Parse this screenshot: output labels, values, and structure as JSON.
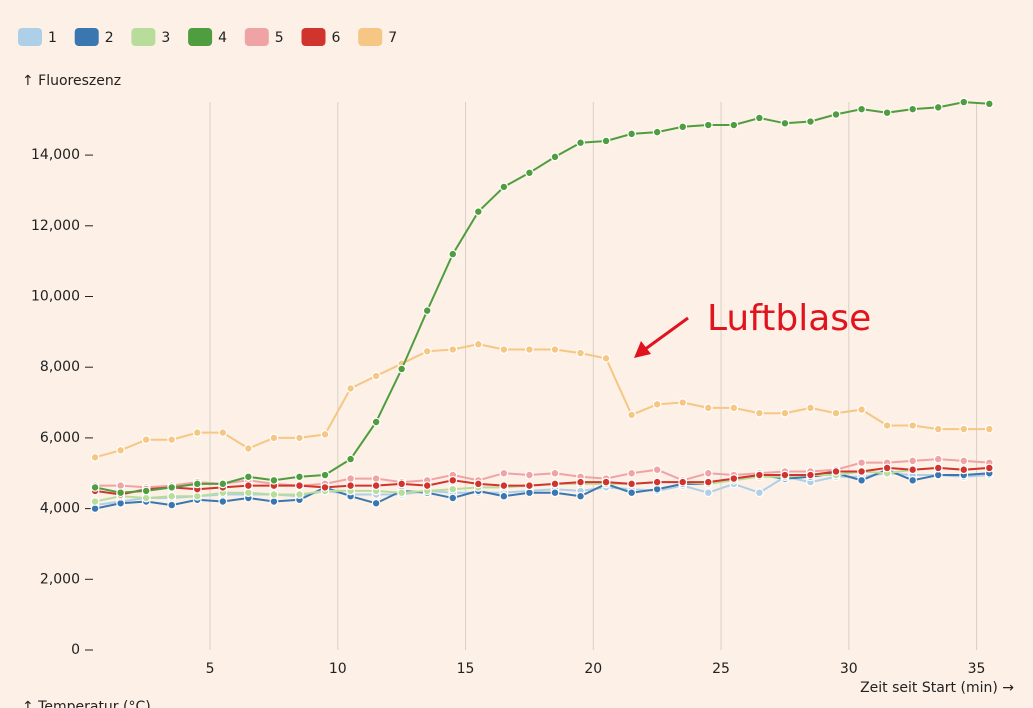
{
  "chart_data": {
    "type": "line",
    "y_label": "↑ Fluoreszenz",
    "x_label": "Zeit seit Start (min) →",
    "second_axis_label": "↑ Temperatur (°C)",
    "annotation": "Luftblase",
    "grid": "x",
    "legend_position": "top-left",
    "xlim": [
      0,
      36.5
    ],
    "xticks": [
      5,
      10,
      15,
      20,
      25,
      30,
      35
    ],
    "ylim": [
      0,
      15700
    ],
    "yticks": [
      0,
      {
        "value": 2000,
        "label": "2,000"
      },
      {
        "value": 4000,
        "label": "4,000"
      },
      {
        "value": 6000,
        "label": "6,000"
      },
      {
        "value": 8000,
        "label": "8,000"
      },
      {
        "value": 10000,
        "label": "10,000"
      },
      {
        "value": 12000,
        "label": "12,000"
      },
      {
        "value": 14000,
        "label": "14,000"
      }
    ],
    "x": [
      0.5,
      1.5,
      2.5,
      3.5,
      4.5,
      5.5,
      6.5,
      7.5,
      8.5,
      9.5,
      10.5,
      11.5,
      12.5,
      13.5,
      14.5,
      15.5,
      16.5,
      17.5,
      18.5,
      19.5,
      20.5,
      21.5,
      22.5,
      23.5,
      24.5,
      25.5,
      26.5,
      27.5,
      28.5,
      29.5,
      30.5,
      31.5,
      32.5,
      33.5,
      34.5,
      35.5
    ],
    "series": [
      {
        "name": "1",
        "color": "#aecfe8",
        "values": [
          4100,
          4200,
          4300,
          4300,
          4350,
          4400,
          4400,
          4400,
          4350,
          4500,
          4400,
          4400,
          4400,
          4500,
          4450,
          4450,
          4450,
          4500,
          4550,
          4500,
          4600,
          4550,
          4500,
          4650,
          4450,
          4700,
          4450,
          4900,
          4750,
          4900,
          4900,
          5000,
          4950,
          4950,
          4900,
          4950
        ]
      },
      {
        "name": "2",
        "color": "#3a76b0",
        "values": [
          4000,
          4150,
          4200,
          4100,
          4250,
          4200,
          4300,
          4200,
          4250,
          4600,
          4350,
          4150,
          4500,
          4450,
          4300,
          4500,
          4350,
          4450,
          4450,
          4350,
          4700,
          4450,
          4550,
          4700,
          4700,
          4850,
          4950,
          4850,
          4900,
          5000,
          4800,
          5100,
          4800,
          4950,
          4950,
          5000
        ]
      },
      {
        "name": "3",
        "color": "#b8dd9a",
        "values": [
          4200,
          4350,
          4300,
          4350,
          4350,
          4450,
          4450,
          4400,
          4400,
          4500,
          4500,
          4500,
          4450,
          4500,
          4550,
          4600,
          4600,
          4650,
          4700,
          4700,
          4700,
          4700,
          4750,
          4750,
          4700,
          4800,
          4900,
          4900,
          4950,
          4950,
          5050,
          5000,
          5100,
          5150,
          5100,
          5150
        ]
      },
      {
        "name": "5",
        "color": "#f0a3a4",
        "values": [
          4650,
          4650,
          4600,
          4650,
          4750,
          4700,
          4800,
          4700,
          4650,
          4700,
          4850,
          4850,
          4750,
          4800,
          4950,
          4800,
          5000,
          4950,
          5000,
          4900,
          4850,
          5000,
          5100,
          4800,
          5000,
          4950,
          5000,
          5050,
          5050,
          5100,
          5300,
          5300,
          5350,
          5400,
          5350,
          5300
        ]
      },
      {
        "name": "6",
        "color": "#d0342c",
        "values": [
          4500,
          4400,
          4550,
          4600,
          4550,
          4600,
          4650,
          4650,
          4650,
          4600,
          4650,
          4650,
          4700,
          4650,
          4800,
          4700,
          4650,
          4650,
          4700,
          4750,
          4750,
          4700,
          4750,
          4750,
          4750,
          4850,
          4950,
          4950,
          4950,
          5050,
          5050,
          5150,
          5100,
          5150,
          5100,
          5150
        ]
      },
      {
        "name": "7",
        "color": "#f6c784",
        "values": [
          5450,
          5650,
          5950,
          5950,
          6150,
          6150,
          5700,
          6000,
          6000,
          6100,
          7400,
          7750,
          8100,
          8450,
          8500,
          8650,
          8500,
          8500,
          8500,
          8400,
          8250,
          6650,
          6950,
          7000,
          6850,
          6850,
          6700,
          6700,
          6850,
          6700,
          6800,
          6350,
          6350,
          6250,
          6250,
          6250
        ]
      },
      {
        "name": "4",
        "color": "#4f9d3e",
        "values": [
          4600,
          4450,
          4500,
          4600,
          4700,
          4700,
          4900,
          4800,
          4900,
          4950,
          5400,
          6450,
          7950,
          9600,
          11200,
          12400,
          13100,
          13500,
          13950,
          14350,
          14400,
          14600,
          14650,
          14800,
          14850,
          14850,
          15050,
          14900,
          14950,
          15150,
          15300,
          15200,
          15300,
          15350,
          15500,
          15450
        ]
      }
    ]
  }
}
